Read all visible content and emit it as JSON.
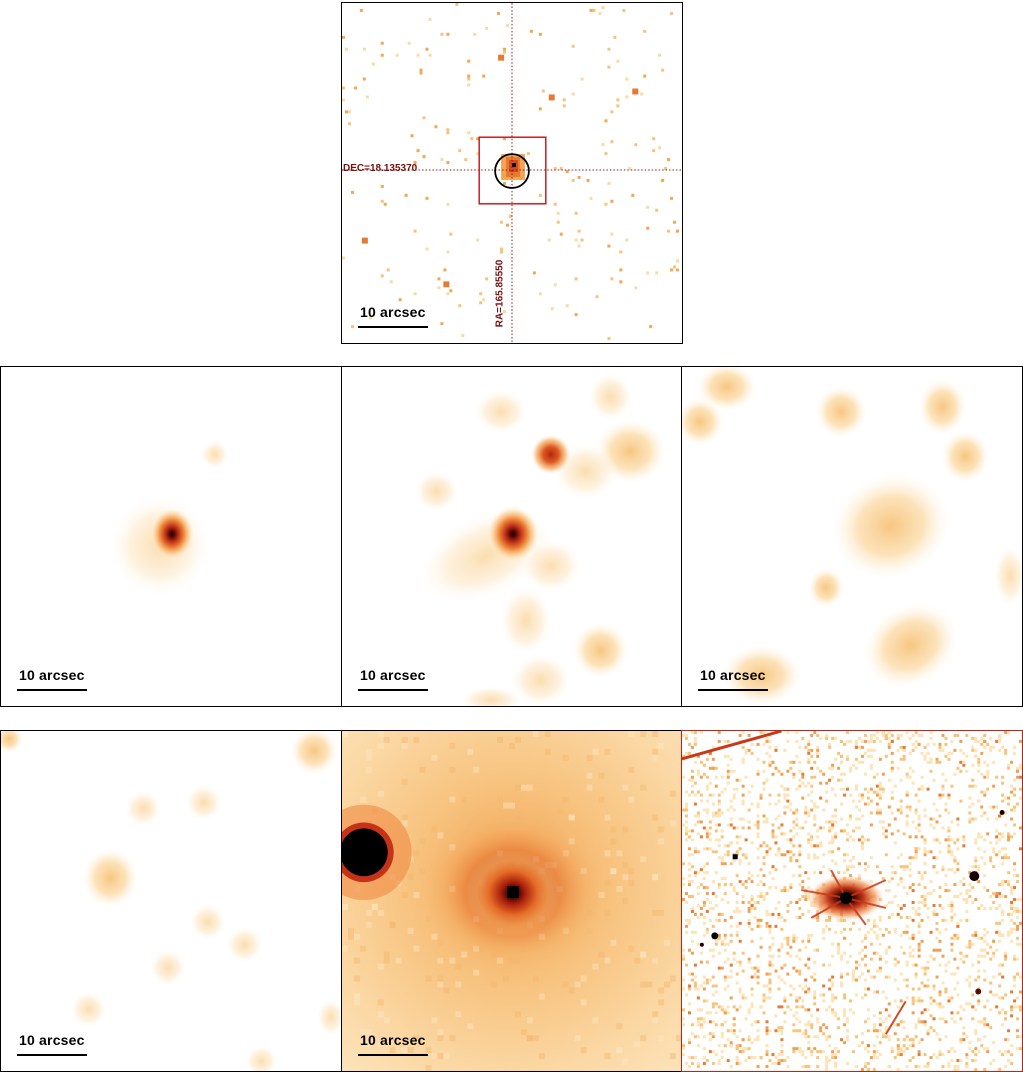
{
  "scale_label": "10 arcsec",
  "top_panel": {
    "dec_label": "DEC=18.135370",
    "ra_label": "RA=165.85550"
  },
  "colors": {
    "frame": "#000000",
    "crosshair": "#8b1a1a",
    "box": "#c02020",
    "hst_frame": "#c82010",
    "colormap_light": "#fde3b5",
    "colormap_mid": "#f5a94a",
    "colormap_deep": "#c8381a",
    "colormap_dark": "#2a0400"
  },
  "panels": [
    {
      "id": "xray-counts"
    },
    {
      "id": "smoothed-1"
    },
    {
      "id": "smoothed-2"
    },
    {
      "id": "smoothed-3"
    },
    {
      "id": "smoothed-4"
    },
    {
      "id": "optical"
    },
    {
      "id": "hst"
    }
  ]
}
